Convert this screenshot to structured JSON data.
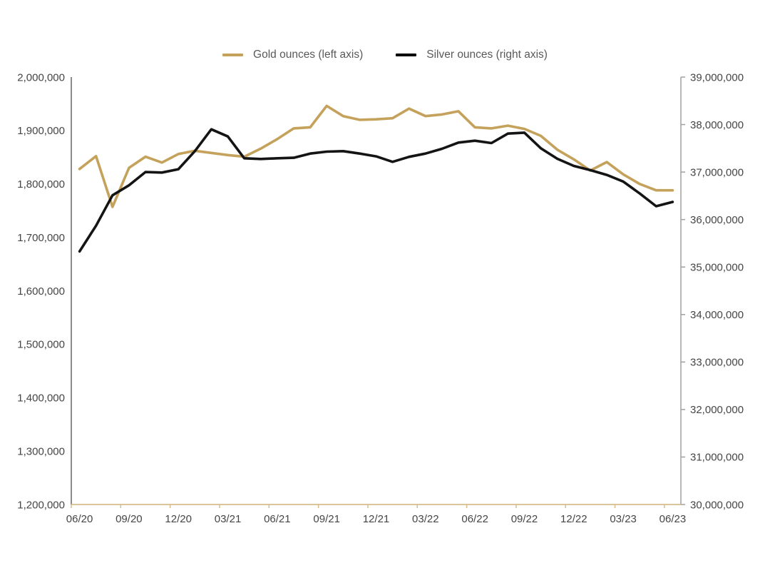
{
  "chart_data": {
    "type": "line",
    "title": "",
    "x_label": "",
    "x_monthly": [
      "06/20",
      "07/20",
      "08/20",
      "09/20",
      "10/20",
      "11/20",
      "12/20",
      "01/21",
      "02/21",
      "03/21",
      "04/21",
      "05/21",
      "06/21",
      "07/21",
      "08/21",
      "09/21",
      "10/21",
      "11/21",
      "12/21",
      "01/22",
      "02/22",
      "03/22",
      "04/22",
      "05/22",
      "06/22",
      "07/22",
      "08/22",
      "09/22",
      "10/22",
      "11/22",
      "12/22",
      "01/23",
      "02/23",
      "03/23",
      "04/23",
      "05/23",
      "06/23"
    ],
    "x_tick_labels": [
      "06/20",
      "09/20",
      "12/20",
      "03/21",
      "06/21",
      "09/21",
      "12/21",
      "03/22",
      "06/22",
      "09/22",
      "12/22",
      "03/23",
      "06/23"
    ],
    "series": [
      {
        "name": "Gold ounces (left axis)",
        "axis": "left",
        "color": "#C5A25C",
        "values": [
          1828000,
          1852000,
          1757000,
          1830000,
          1851000,
          1840000,
          1856000,
          1862000,
          1858000,
          1854000,
          1851000,
          1866000,
          1884000,
          1904000,
          1906000,
          1946000,
          1927000,
          1920000,
          1921000,
          1923000,
          1941000,
          1927000,
          1930000,
          1936000,
          1906000,
          1904000,
          1909000,
          1903000,
          1890000,
          1864000,
          1846000,
          1825000,
          1841000,
          1818000,
          1800000,
          1788000,
          1788000
        ]
      },
      {
        "name": "Silver ounces (right axis)",
        "axis": "right",
        "color": "#141414",
        "values": [
          35330000,
          35870000,
          36510000,
          36720000,
          37000000,
          36990000,
          37060000,
          37440000,
          37900000,
          37750000,
          37290000,
          37275000,
          37290000,
          37300000,
          37390000,
          37430000,
          37440000,
          37390000,
          37330000,
          37215000,
          37320000,
          37390000,
          37490000,
          37620000,
          37660000,
          37610000,
          37810000,
          37830000,
          37500000,
          37280000,
          37130000,
          37040000,
          36940000,
          36800000,
          36550000,
          36280000,
          36370000
        ]
      }
    ],
    "left_axis": {
      "min": 1200000,
      "max": 2000000,
      "step": 100000,
      "tick_labels_top_to_bottom": [
        "2,000,000",
        "1,900,000",
        "1,800,000",
        "1,700,000",
        "1,600,000",
        "1,500,000",
        "1,400,000",
        "1,300,000",
        "1,200,000"
      ]
    },
    "right_axis": {
      "min": 30000000,
      "max": 39000000,
      "step": 1000000,
      "tick_labels_top_to_bottom": [
        "39,000,000",
        "38,000,000",
        "37,000,000",
        "36,000,000",
        "35,000,000",
        "34,000,000",
        "33,000,000",
        "32,000,000",
        "31,000,000",
        "30,000,000"
      ]
    },
    "grid": false,
    "legend_position": "top-center"
  },
  "legend": {
    "items": [
      {
        "label": "Gold ounces (left axis)",
        "color": "#C5A25C"
      },
      {
        "label": "Silver ounces (right axis)",
        "color": "#000000"
      }
    ]
  },
  "colors": {
    "gold_series": "#C5A25C",
    "silver_series": "#141414",
    "x_axis_line": "#D4BE8B",
    "left_axis_line": "#7F7F7F",
    "right_axis_line": "#A0A0A0",
    "axis_text": "#454545",
    "legend_text": "#595959",
    "background": "#FFFFFF"
  }
}
